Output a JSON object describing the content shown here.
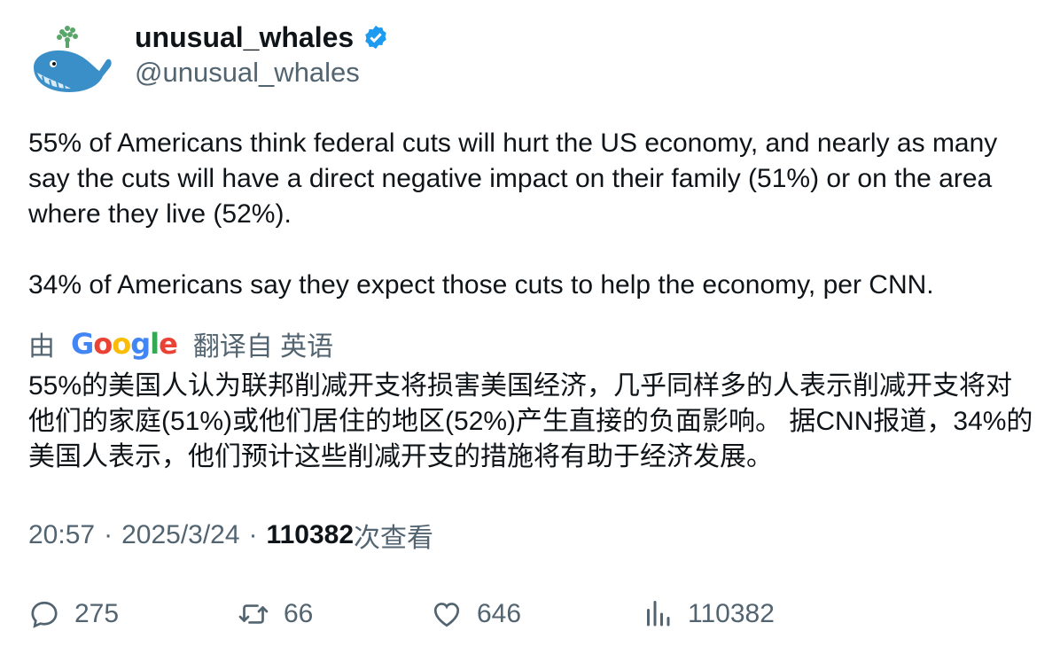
{
  "author": {
    "display_name": "unusual_whales",
    "handle": "@unusual_whales",
    "verified_color": "#1d9bf0"
  },
  "tweet": {
    "text": "55% of Americans think federal cuts will hurt the US economy, and nearly as many say the cuts will have a direct negative impact on their family (51%) or on the area where they live (52%).\n\n34% of Americans say they expect those cuts to help the economy, per CNN."
  },
  "translation": {
    "prefix": "由",
    "provider_letters": [
      "G",
      "o",
      "o",
      "g",
      "l",
      "e"
    ],
    "suffix": "翻译自 英语",
    "text": "55%的美国人认为联邦削减开支将损害美国经济，几乎同样多的人表示削减开支将对他们的家庭(51%)或他们居住的地区(52%)产生直接的负面影响。 据CNN报道，34%的美国人表示，他们预计这些削减开支的措施将有助于经济发展。"
  },
  "meta": {
    "time": "20:57",
    "separator": "·",
    "date": "2025/3/24",
    "views_count": "110382",
    "views_label": "次查看"
  },
  "actions": {
    "replies": "275",
    "retweets": "66",
    "likes": "646",
    "views": "110382"
  }
}
